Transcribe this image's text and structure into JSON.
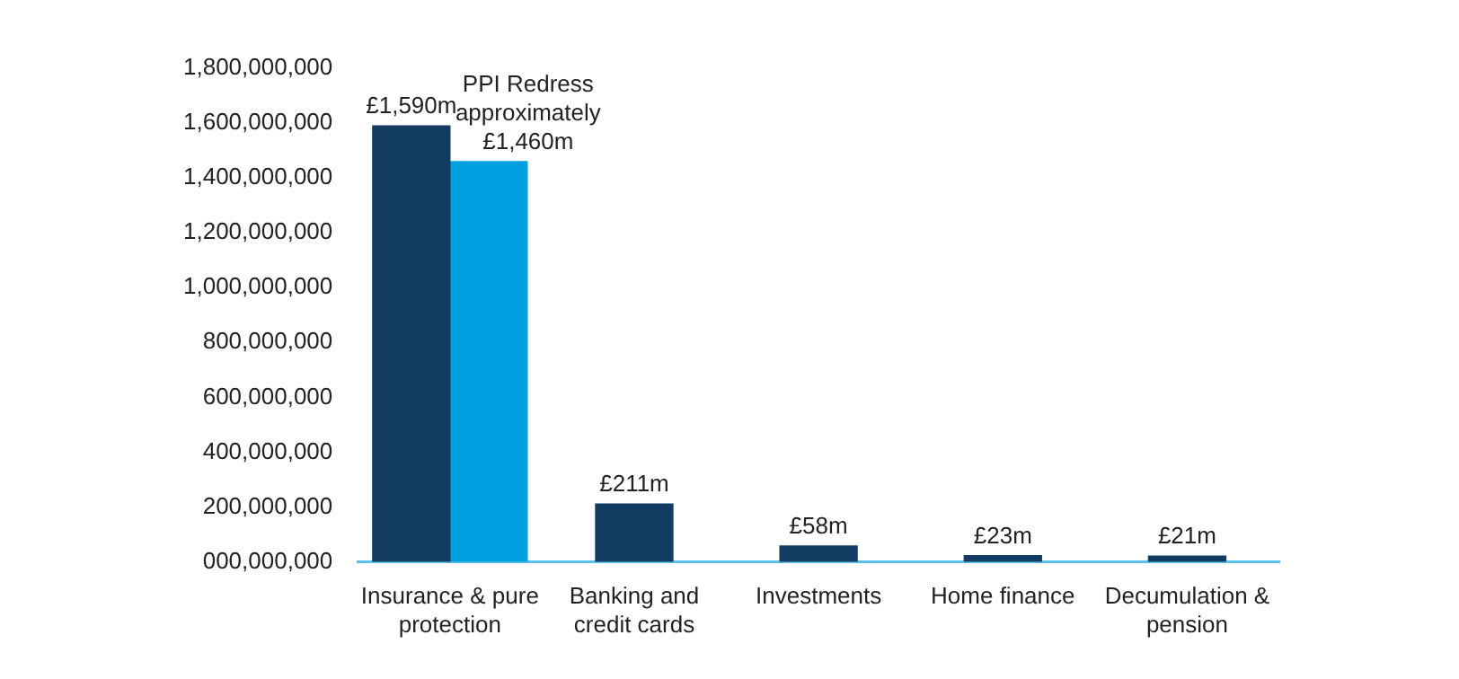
{
  "chart_data": {
    "type": "bar",
    "categories": [
      "Insurance & pure protection",
      "Banking and credit cards",
      "Investments",
      "Home finance",
      "Decumulation & pension"
    ],
    "series": [
      {
        "color": "#133c63",
        "values": [
          1590000000,
          211000000,
          58000000,
          23000000,
          21000000
        ],
        "value_labels": [
          "£1,590m",
          "£211m",
          "£58m",
          "£23m",
          "£21m"
        ]
      },
      {
        "color": "#009fdf",
        "values": [
          1460000000,
          null,
          null,
          null,
          null
        ],
        "value_labels": [
          "PPI Redress approximately £1,460m",
          null,
          null,
          null,
          null
        ]
      }
    ],
    "ylim": [
      0,
      1800000000
    ],
    "yticks": [
      {
        "value": 0,
        "label": "000,000,000"
      },
      {
        "value": 200000000,
        "label": "200,000,000"
      },
      {
        "value": 400000000,
        "label": "400,000,000"
      },
      {
        "value": 600000000,
        "label": "600,000,000"
      },
      {
        "value": 800000000,
        "label": "800,000,000"
      },
      {
        "value": 1000000000,
        "label": "1,000,000,000"
      },
      {
        "value": 1200000000,
        "label": "1,200,000,000"
      },
      {
        "value": 1400000000,
        "label": "1,400,000,000"
      },
      {
        "value": 1600000000,
        "label": "1,600,000,000"
      },
      {
        "value": 1800000000,
        "label": "1,800,000,000"
      }
    ],
    "grid": false,
    "legend": false
  }
}
